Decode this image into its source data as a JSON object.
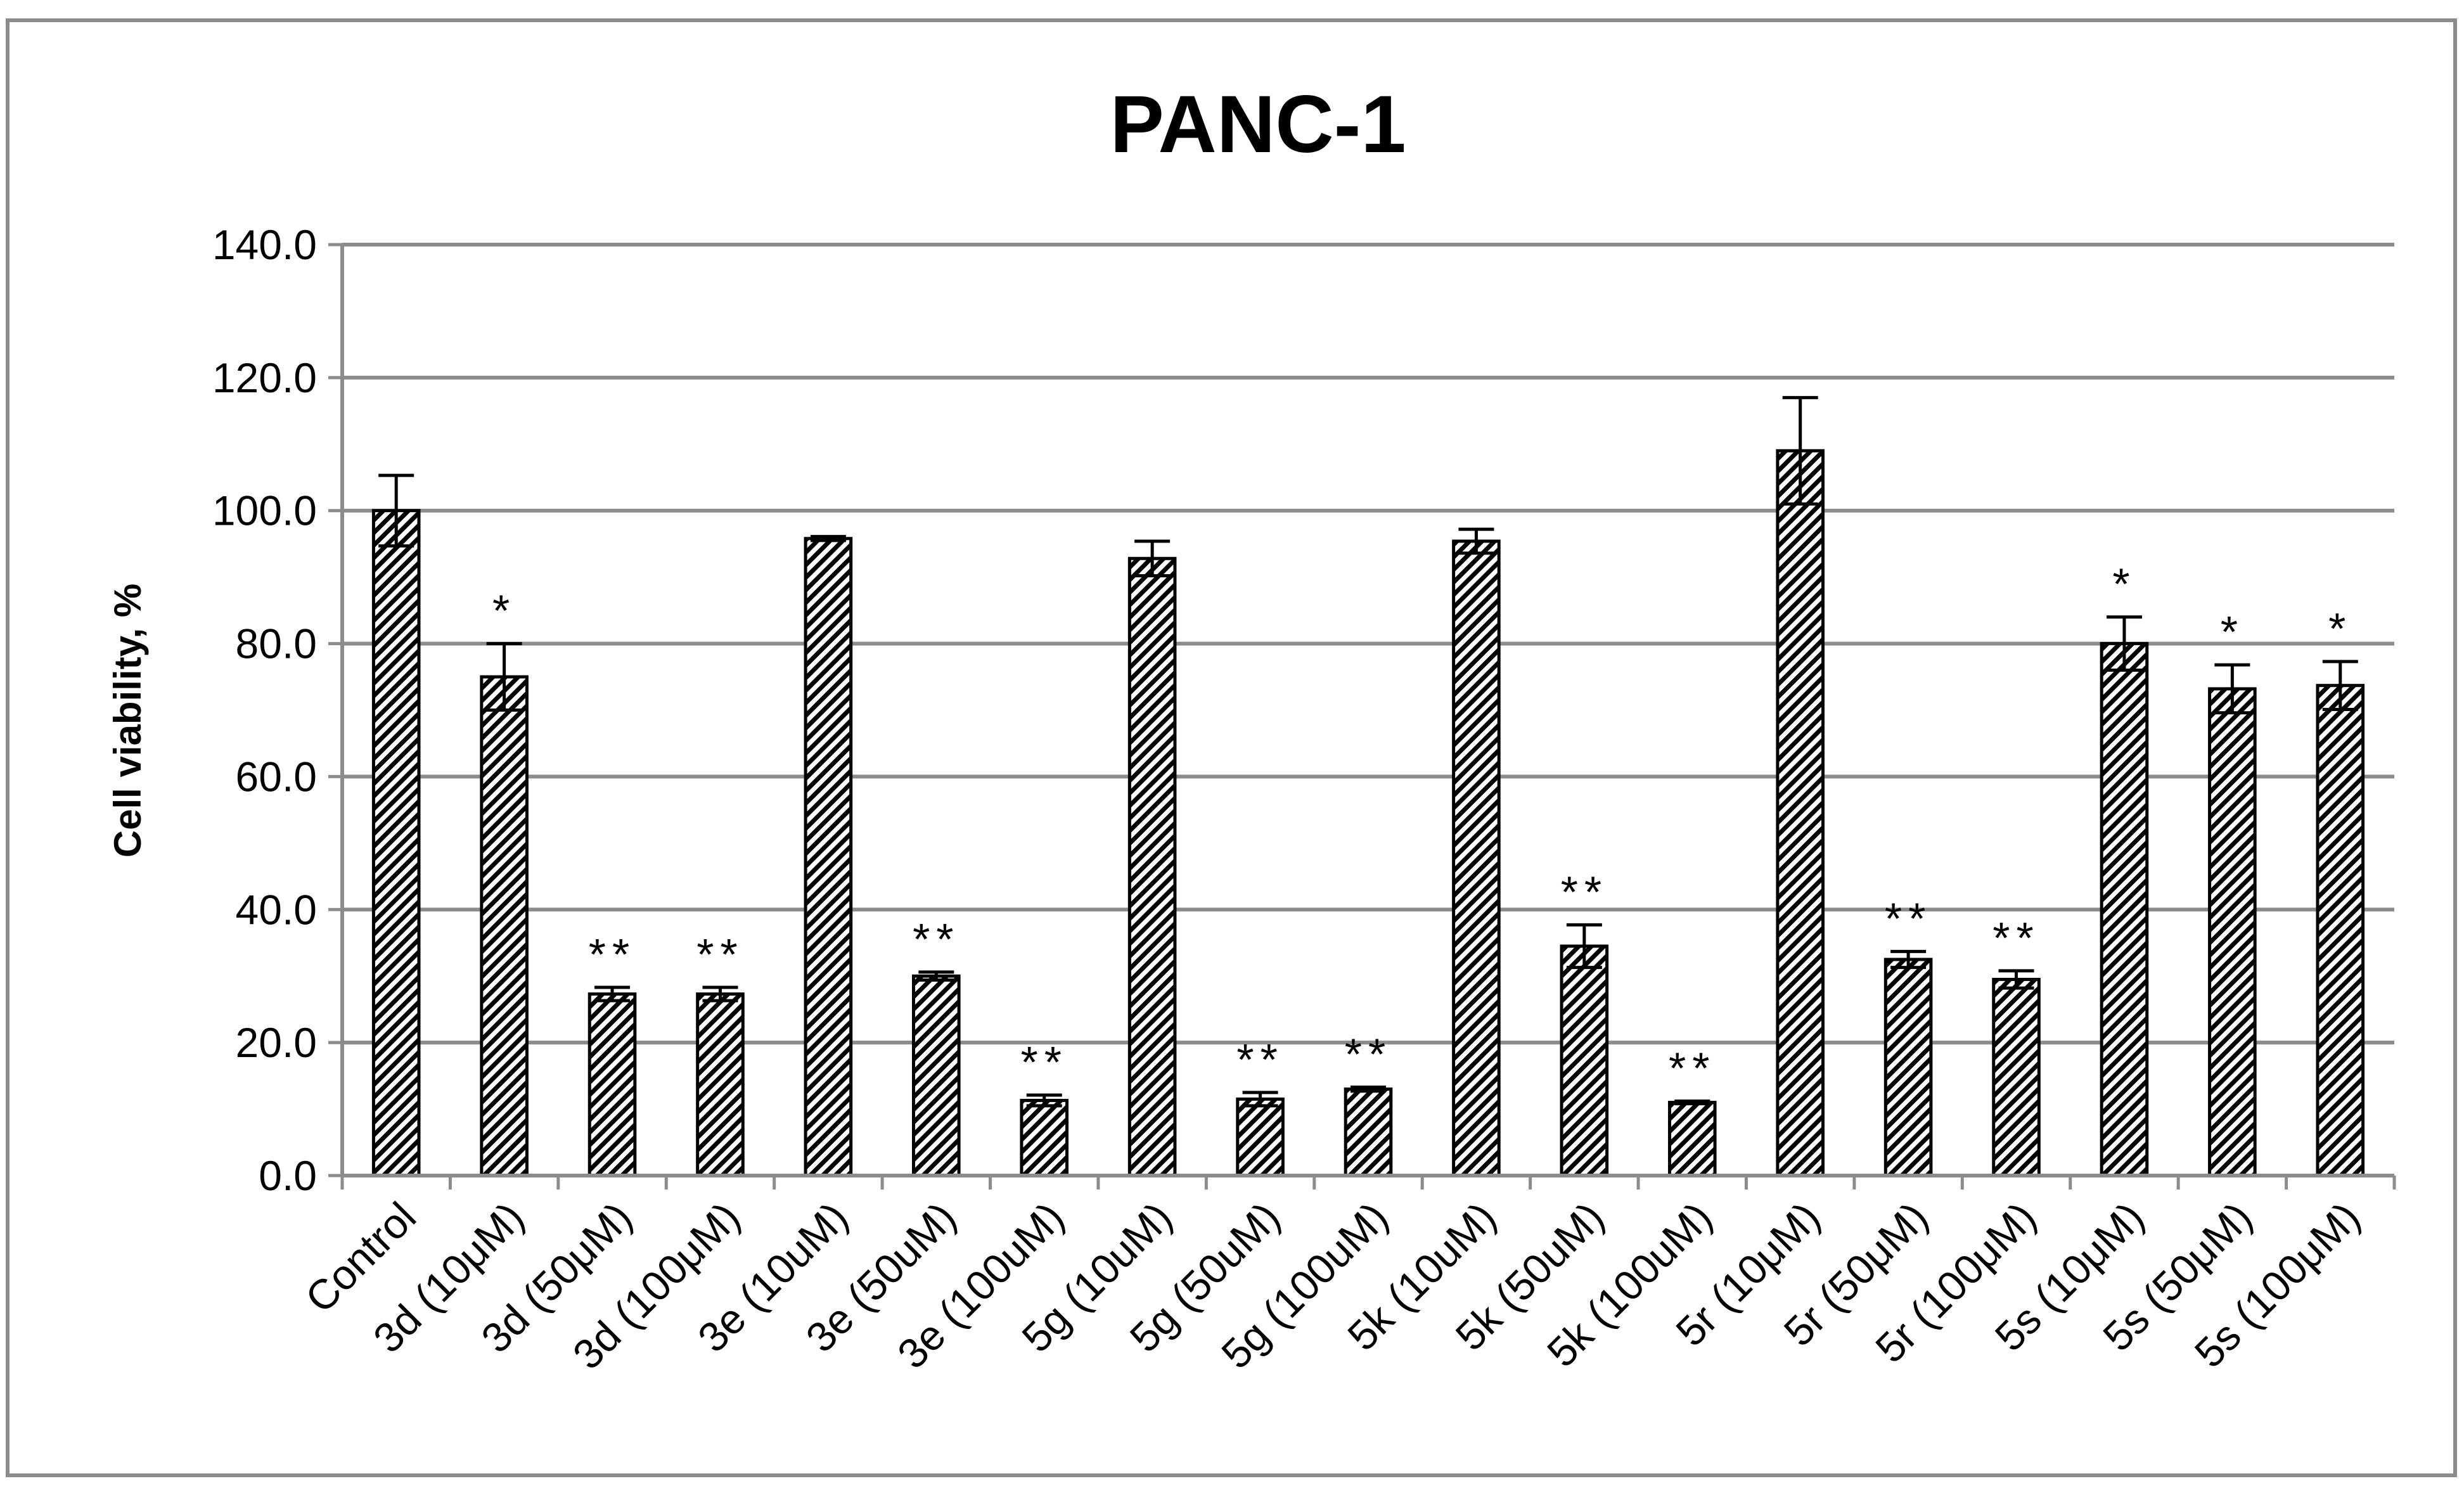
{
  "chart_data": {
    "type": "bar",
    "title": "PANC-1",
    "xlabel": "",
    "ylabel": "Cell viability, %",
    "ylim": [
      0,
      140
    ],
    "yticks": [
      "0.0",
      "20.0",
      "40.0",
      "60.0",
      "80.0",
      "100.0",
      "120.0",
      "140.0"
    ],
    "grid": true,
    "legend": "none",
    "bar_pattern": "diagonal-hatch",
    "bar_color": "#000000",
    "categories": [
      "Control",
      "3d (10μM)",
      "3d (50μM)",
      "3d (100μM)",
      "3e (10uM)",
      "3e (50uM)",
      "3e (100uM)",
      "5g (10uM)",
      "5g (50uM)",
      "5g (100uM)",
      "5k (10uM)",
      "5k (50uM)",
      "5k (100uM)",
      "5r (10μM)",
      "5r (50μM)",
      "5r (100μM)",
      "5s (10μM)",
      "5s (50μM)",
      "5s (100μM)"
    ],
    "values": [
      100.0,
      75.0,
      27.3,
      27.3,
      95.8,
      30.0,
      11.3,
      92.8,
      11.5,
      13.0,
      95.4,
      34.5,
      11.0,
      109.0,
      32.5,
      29.5,
      80.0,
      73.2,
      73.7
    ],
    "errors": [
      5.3,
      5.0,
      1.0,
      1.0,
      0.3,
      0.6,
      0.8,
      2.6,
      1.0,
      0.3,
      1.8,
      3.2,
      0.2,
      8.0,
      1.2,
      1.3,
      4.0,
      3.6,
      3.6
    ],
    "significance": [
      "",
      "*",
      "**",
      "**",
      "",
      "**",
      "**",
      "",
      "**",
      "**",
      "",
      "**",
      "**",
      "",
      "**",
      "**",
      "*",
      "*",
      "*"
    ]
  }
}
